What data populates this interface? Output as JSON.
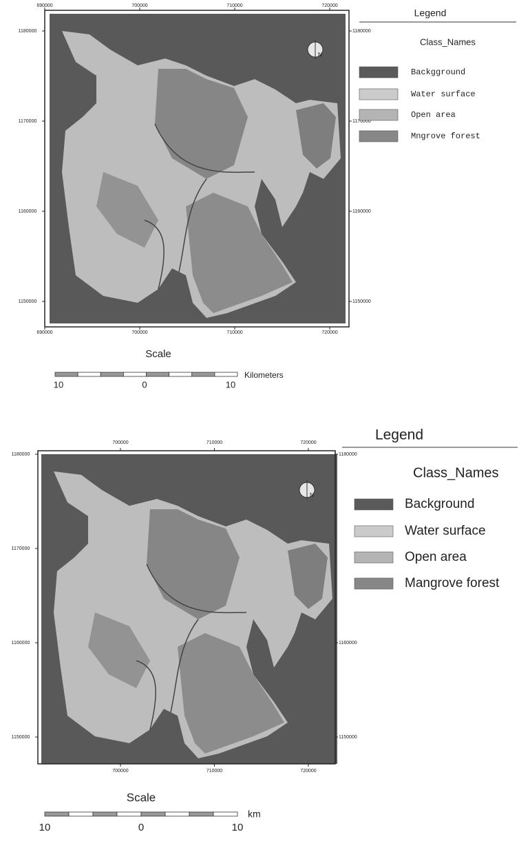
{
  "maps": [
    {
      "top_ticks": [
        "690000",
        "700000",
        "710000",
        "720000"
      ],
      "bottom_ticks": [
        "690000",
        "700000",
        "710000",
        "720000"
      ],
      "left_ticks": [
        "1180000",
        "1170000",
        "1160000",
        "1150000"
      ],
      "right_ticks": [
        "1180000",
        "1170000",
        "1160000",
        "1150000"
      ],
      "scale_title": "Scale",
      "scale_labels": [
        "10",
        "0",
        "10"
      ],
      "scale_unit": "Kilometers",
      "legend_title": "Legend",
      "legend_subtitle": "Class_Names",
      "classes": [
        {
          "name": "Backgground",
          "color": "#5a5a5a"
        },
        {
          "name": "Water surface",
          "color": "#cbcbcb"
        },
        {
          "name": "Open area",
          "color": "#b4b4b4"
        },
        {
          "name": "Mngrove forest",
          "color": "#878787"
        }
      ]
    },
    {
      "top_ticks": [
        "700000",
        "710000",
        "720000"
      ],
      "bottom_ticks": [
        "700000",
        "710000",
        "720000"
      ],
      "left_ticks": [
        "1180000",
        "1170000",
        "1160000",
        "1150000"
      ],
      "right_ticks": [
        "1180000",
        "1160000",
        "1150000"
      ],
      "scale_title": "Scale",
      "scale_labels": [
        "10",
        "0",
        "10"
      ],
      "scale_unit": "km",
      "legend_title": "Legend",
      "legend_subtitle": "Class_Names",
      "classes": [
        {
          "name": "Background",
          "color": "#5a5a5a"
        },
        {
          "name": "Water surface",
          "color": "#cbcbcb"
        },
        {
          "name": "Open area",
          "color": "#b4b4b4"
        },
        {
          "name": "Mangrove forest",
          "color": "#878787"
        }
      ]
    }
  ]
}
